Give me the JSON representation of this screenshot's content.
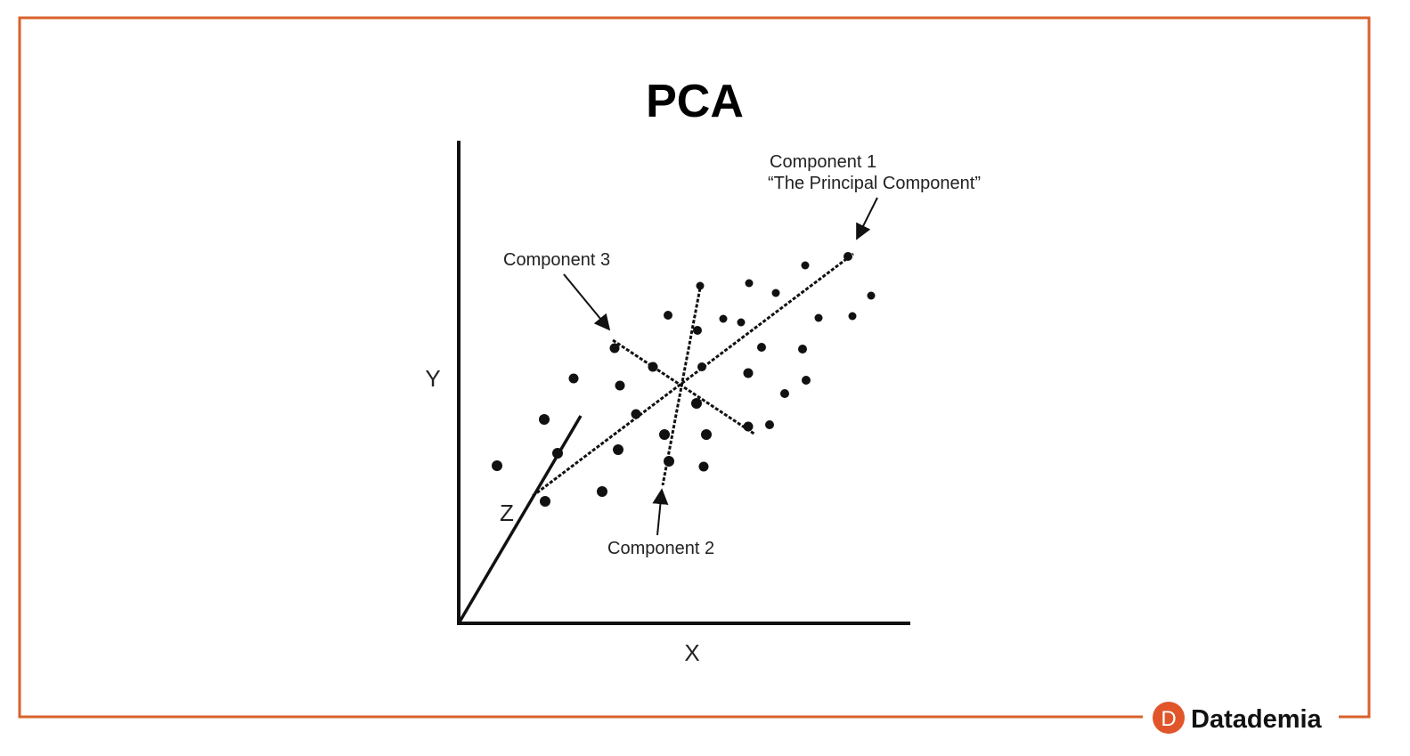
{
  "header": {
    "title": "PCA"
  },
  "axes": {
    "y": "Y",
    "x": "X",
    "z": "Z"
  },
  "annotations": {
    "component_1": "Component 1",
    "component_1_note": "“The Principal Component”",
    "component_3": "Component 3",
    "component_2": "Component 2"
  },
  "brand": {
    "logo_letter": "D",
    "name": "Datademia"
  }
}
